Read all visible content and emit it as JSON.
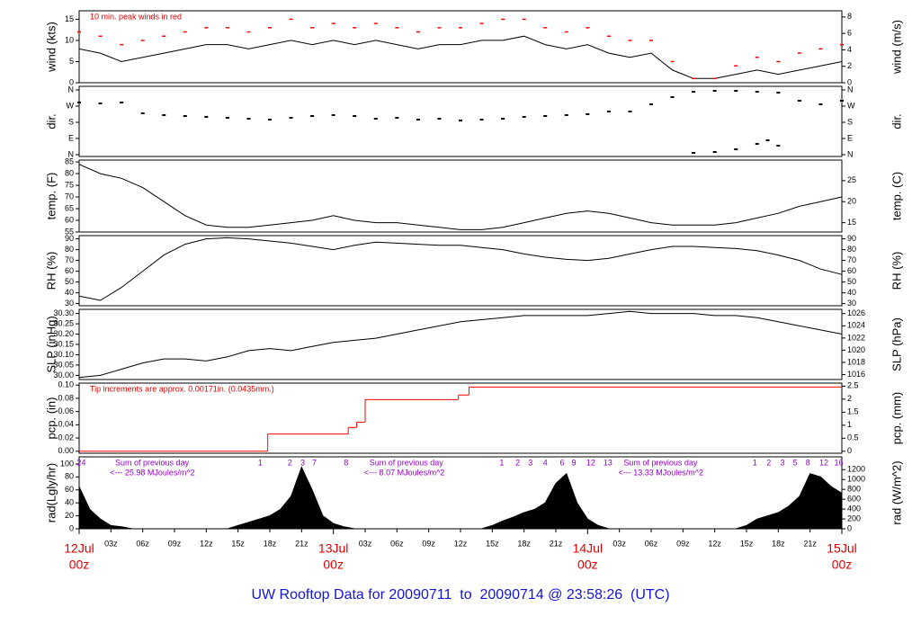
{
  "x_axis": {
    "xlim": [
      0,
      72
    ],
    "xticks": [
      {
        "value": 3,
        "label": "03z"
      },
      {
        "value": 6,
        "label": "06z"
      },
      {
        "value": 9,
        "label": "09z"
      },
      {
        "value": 12,
        "label": "12z"
      },
      {
        "value": 15,
        "label": "15z"
      },
      {
        "value": 18,
        "label": "18z"
      },
      {
        "value": 21,
        "label": "21z"
      },
      {
        "value": 27,
        "label": "03z"
      },
      {
        "value": 30,
        "label": "06z"
      },
      {
        "value": 33,
        "label": "09z"
      },
      {
        "value": 36,
        "label": "12z"
      },
      {
        "value": 39,
        "label": "15z"
      },
      {
        "value": 42,
        "label": "18z"
      },
      {
        "value": 45,
        "label": "21z"
      },
      {
        "value": 51,
        "label": "03z"
      },
      {
        "value": 54,
        "label": "06z"
      },
      {
        "value": 57,
        "label": "09z"
      },
      {
        "value": 60,
        "label": "12z"
      },
      {
        "value": 63,
        "label": "15z"
      },
      {
        "value": 66,
        "label": "18z"
      },
      {
        "value": 69,
        "label": "21z"
      }
    ],
    "date_labels": [
      {
        "value": 0,
        "date": "12Jul",
        "time": "00z"
      },
      {
        "value": 24,
        "date": "13Jul",
        "time": "00z"
      },
      {
        "value": 48,
        "date": "14Jul",
        "time": "00z"
      },
      {
        "value": 72,
        "date": "15Jul",
        "time": "00z"
      }
    ]
  },
  "footer": "UW Rooftop Data for 20090711  to  20090714 @ 23:58:26  (UTC)",
  "chart_data": [
    {
      "type": "line",
      "ylabel": "wind (kts)",
      "y2label": "wind (m/s)",
      "annotation": "10 min. peak winds in red",
      "ylim": [
        0,
        17
      ],
      "yticks": [
        0,
        5,
        10,
        15
      ],
      "y2lim": [
        0,
        8.75
      ],
      "y2ticks": [
        0,
        2,
        4,
        6,
        8
      ],
      "x": [
        0,
        2,
        4,
        6,
        8,
        10,
        12,
        14,
        16,
        18,
        20,
        22,
        24,
        26,
        28,
        30,
        32,
        34,
        36,
        38,
        40,
        42,
        44,
        46,
        48,
        50,
        52,
        54,
        56,
        58,
        60,
        62,
        64,
        66,
        68,
        70,
        72
      ],
      "series": [
        {
          "style": "line",
          "color": "#000000",
          "values": [
            8,
            7,
            5,
            6,
            7,
            8,
            9,
            9,
            8,
            9,
            10,
            9,
            10,
            9,
            10,
            9,
            8,
            9,
            9,
            10,
            10,
            11,
            9,
            8,
            9,
            7,
            6,
            7,
            3,
            1,
            1,
            2,
            3,
            2,
            3,
            4,
            5
          ]
        },
        {
          "style": "points",
          "color": "#ff0000",
          "values": [
            12,
            11,
            9,
            10,
            11,
            12,
            13,
            13,
            12,
            13,
            15,
            13,
            14,
            13,
            14,
            13,
            12,
            13,
            13,
            14,
            15,
            15,
            13,
            12,
            13,
            11,
            10,
            10,
            5,
            1,
            1,
            4,
            6,
            5,
            7,
            8,
            9
          ]
        }
      ]
    },
    {
      "type": "scatter",
      "ylabel": "dir.",
      "y2label": "dir.",
      "ylim": [
        -10,
        380
      ],
      "yticks": [
        {
          "value": 0,
          "label": "N"
        },
        {
          "value": 90,
          "label": "E"
        },
        {
          "value": 180,
          "label": "S"
        },
        {
          "value": 270,
          "label": "W"
        },
        {
          "value": 360,
          "label": "N"
        }
      ],
      "y2lim": [
        -10,
        380
      ],
      "y2ticks": [
        {
          "value": 0,
          "label": "N"
        },
        {
          "value": 90,
          "label": "E"
        },
        {
          "value": 180,
          "label": "S"
        },
        {
          "value": 270,
          "label": "W"
        },
        {
          "value": 360,
          "label": "N"
        }
      ],
      "series": [
        {
          "color": "#000000",
          "x": [
            0,
            2,
            4,
            6,
            8,
            10,
            12,
            14,
            16,
            18,
            20,
            22,
            24,
            26,
            28,
            30,
            32,
            34,
            36,
            38,
            40,
            42,
            44,
            46,
            48,
            50,
            52,
            54,
            56,
            58,
            60,
            62,
            64,
            66,
            68,
            70,
            72
          ],
          "values": [
            290,
            285,
            290,
            230,
            220,
            215,
            210,
            205,
            200,
            195,
            205,
            215,
            220,
            215,
            200,
            205,
            195,
            200,
            190,
            195,
            200,
            210,
            215,
            220,
            225,
            240,
            240,
            280,
            320,
            350,
            355,
            355,
            350,
            345,
            300,
            280,
            300
          ]
        },
        {
          "color": "#000000",
          "x": [
            58,
            60,
            62,
            64,
            65,
            66
          ],
          "values": [
            10,
            15,
            30,
            60,
            80,
            50
          ]
        }
      ]
    },
    {
      "type": "line",
      "ylabel": "temp. (F)",
      "y2label": "temp. (C)",
      "ylim": [
        55,
        85.8
      ],
      "yticks": [
        55,
        60,
        65,
        70,
        75,
        80,
        85
      ],
      "y2lim": [
        12.78,
        29.89
      ],
      "y2ticks": [
        15,
        20,
        25
      ],
      "x": [
        0,
        2,
        4,
        6,
        8,
        10,
        12,
        14,
        16,
        18,
        20,
        22,
        24,
        26,
        28,
        30,
        32,
        34,
        36,
        38,
        40,
        42,
        44,
        46,
        48,
        50,
        52,
        54,
        56,
        58,
        60,
        62,
        64,
        66,
        68,
        70,
        72
      ],
      "series": [
        {
          "style": "line",
          "color": "#000000",
          "values": [
            84,
            80,
            78,
            74,
            68,
            62,
            58,
            57,
            57,
            58,
            59,
            60,
            62,
            60,
            59,
            59,
            58,
            57,
            56,
            56,
            57,
            59,
            61,
            63,
            64,
            63,
            61,
            59,
            58,
            58,
            58,
            59,
            61,
            63,
            66,
            68,
            70
          ]
        }
      ]
    },
    {
      "type": "line",
      "ylabel": "RH (%)",
      "y2label": "RH (%)",
      "ylim": [
        28,
        93
      ],
      "yticks": [
        30,
        40,
        50,
        60,
        70,
        80,
        90
      ],
      "y2lim": [
        28,
        93
      ],
      "y2ticks": [
        30,
        40,
        50,
        60,
        70,
        80,
        90
      ],
      "x": [
        0,
        2,
        4,
        6,
        8,
        10,
        12,
        14,
        16,
        18,
        20,
        22,
        24,
        26,
        28,
        30,
        32,
        34,
        36,
        38,
        40,
        42,
        44,
        46,
        48,
        50,
        52,
        54,
        56,
        58,
        60,
        62,
        64,
        66,
        68,
        70,
        72
      ],
      "series": [
        {
          "style": "line",
          "color": "#000000",
          "values": [
            37,
            33,
            45,
            60,
            75,
            85,
            90,
            91,
            90,
            88,
            86,
            83,
            80,
            84,
            87,
            86,
            85,
            84,
            84,
            82,
            80,
            76,
            73,
            71,
            70,
            72,
            76,
            80,
            83,
            83,
            82,
            81,
            79,
            75,
            70,
            62,
            57
          ]
        }
      ]
    },
    {
      "type": "line",
      "ylabel": "SLP (inHg)",
      "y2label": "SLP (hPa)",
      "ylim": [
        29.98,
        30.32
      ],
      "yticks": [
        {
          "value": 30,
          "label": "30.00"
        },
        {
          "value": 30.05,
          "label": "30.05"
        },
        {
          "value": 30.1,
          "label": "30.10"
        },
        {
          "value": 30.15,
          "label": "30.15"
        },
        {
          "value": 30.2,
          "label": "30.20"
        },
        {
          "value": 30.25,
          "label": "30.25"
        },
        {
          "value": 30.3,
          "label": "30.30"
        }
      ],
      "y2lim": [
        1015.2,
        1026.7
      ],
      "y2ticks": [
        1016,
        1018,
        1020,
        1022,
        1024,
        1026
      ],
      "x": [
        0,
        2,
        4,
        6,
        8,
        10,
        12,
        14,
        16,
        18,
        20,
        22,
        24,
        26,
        28,
        30,
        32,
        34,
        36,
        38,
        40,
        42,
        44,
        46,
        48,
        50,
        52,
        54,
        56,
        58,
        60,
        62,
        64,
        66,
        68,
        70,
        72
      ],
      "series": [
        {
          "style": "line",
          "color": "#000000",
          "values": [
            29.99,
            30,
            30.03,
            30.06,
            30.08,
            30.08,
            30.07,
            30.09,
            30.12,
            30.13,
            30.12,
            30.14,
            30.16,
            30.17,
            30.18,
            30.2,
            30.22,
            30.24,
            30.26,
            30.27,
            30.28,
            30.29,
            30.29,
            30.29,
            30.29,
            30.3,
            30.31,
            30.3,
            30.3,
            30.3,
            30.29,
            30.29,
            30.28,
            30.26,
            30.24,
            30.22,
            30.2
          ]
        }
      ]
    },
    {
      "type": "step",
      "ylabel": "pcp. (in)",
      "y2label": "pcp. (mm)",
      "annotation": "Tip increments are approx. 0.00171in. (0.0435mm.)",
      "ylim": [
        -0.003,
        0.103
      ],
      "yticks": [
        {
          "value": 0,
          "label": "0.00"
        },
        0.02,
        0.04,
        0.06,
        0.08,
        {
          "value": 0.1,
          "label": "0.10"
        }
      ],
      "y2lim": [
        -0.076,
        2.616
      ],
      "y2ticks": [
        0,
        0.5,
        1,
        1.5,
        2,
        2.5
      ],
      "x": [
        0,
        17.8,
        25.4,
        26.2,
        27,
        35.8,
        36.8,
        72
      ],
      "series": [
        {
          "color": "#ff0000",
          "values": [
            0,
            0.026,
            0.036,
            0.044,
            0.078,
            0.085,
            0.097,
            0.097
          ]
        }
      ]
    },
    {
      "type": "area",
      "ylabel": "rad(Lgly/hr)",
      "y2label": "rad (W/m^2)",
      "ylim": [
        0,
        111
      ],
      "yticks": [
        0,
        20,
        40,
        60,
        80,
        100
      ],
      "y2lim": [
        0,
        1460
      ],
      "y2ticks": [
        0,
        200,
        400,
        600,
        800,
        1000,
        1200
      ],
      "marker_x": [
        0.2,
        17.1,
        19.9,
        21.1,
        22.2,
        25.2,
        39.9,
        41.4,
        42.6,
        44,
        45.6,
        46.7,
        48.3,
        49.9,
        63.8,
        65.1,
        66.4,
        67.6,
        68.8,
        70.3,
        71.7
      ],
      "marker_labels": [
        "24",
        "1",
        "2",
        "3",
        "7",
        "8",
        "1",
        "2",
        "3",
        "4",
        "6",
        "9",
        "12",
        "13",
        "1",
        "2",
        "3",
        "5",
        "8",
        "12",
        "16"
      ],
      "daily_sums": [
        {
          "label": "Sum of previous day",
          "value_label": "<--- 25.98 MJoules/m^2"
        },
        {
          "label": "Sum of previous day",
          "value_label": "<--- 8.07 MJoules/m^2"
        },
        {
          "label": "Sum of previous day",
          "value_label": "<--- 13.33 MJoules/m^2"
        }
      ],
      "x": [
        0,
        1,
        2,
        3,
        4,
        5,
        6,
        7,
        8,
        9,
        10,
        11,
        12,
        13,
        14,
        15,
        16,
        17,
        18,
        19,
        20,
        21,
        22,
        23,
        24,
        25,
        26,
        27,
        28,
        29,
        30,
        31,
        32,
        33,
        34,
        35,
        36,
        37,
        38,
        39,
        40,
        41,
        42,
        43,
        44,
        45,
        46,
        47,
        48,
        49,
        50,
        51,
        52,
        53,
        54,
        55,
        56,
        57,
        58,
        59,
        60,
        61,
        62,
        63,
        64,
        65,
        66,
        67,
        68,
        69,
        70,
        71,
        72
      ],
      "series": [
        {
          "color": "#000000",
          "values": [
            65,
            30,
            15,
            5,
            3,
            0,
            0,
            0,
            0,
            0,
            0,
            0,
            0,
            0,
            0,
            5,
            10,
            15,
            20,
            30,
            50,
            95,
            60,
            20,
            8,
            3,
            0,
            0,
            0,
            0,
            0,
            0,
            0,
            0,
            0,
            0,
            0,
            0,
            0,
            5,
            12,
            18,
            25,
            30,
            40,
            70,
            85,
            40,
            15,
            5,
            0,
            0,
            0,
            0,
            0,
            0,
            0,
            0,
            0,
            0,
            0,
            0,
            0,
            5,
            15,
            20,
            25,
            35,
            50,
            85,
            80,
            65,
            55
          ]
        }
      ]
    }
  ]
}
